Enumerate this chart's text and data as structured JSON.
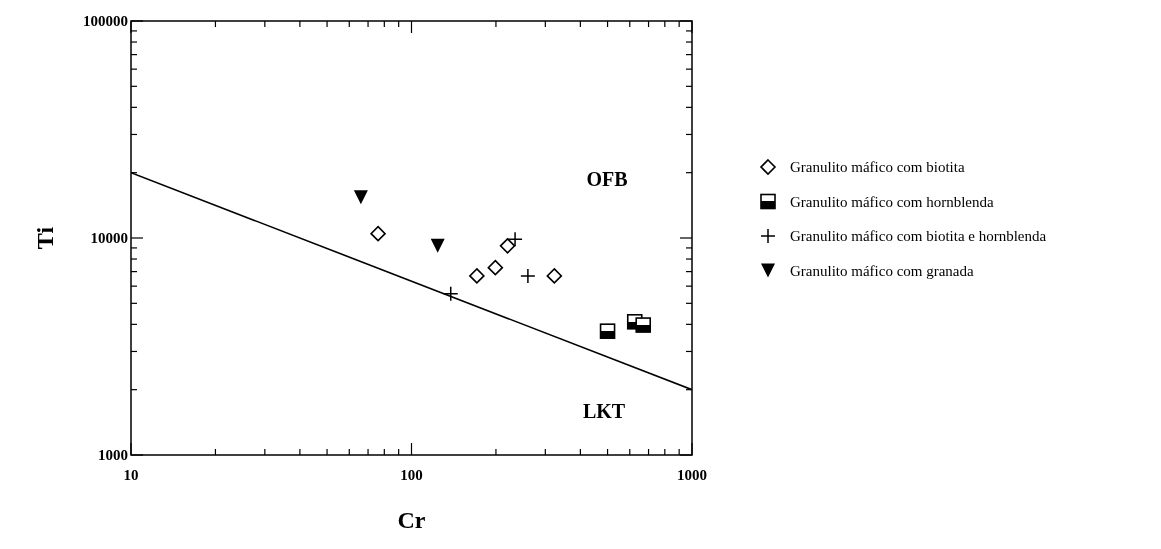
{
  "chart_data": {
    "type": "scatter",
    "xlabel": "Cr",
    "ylabel": "Ti",
    "log": "xy",
    "xlim": [
      10,
      1000
    ],
    "ylim": [
      1000,
      100000
    ],
    "xticks": [
      10,
      {
        "value": 20,
        "label": null
      },
      {
        "value": 30,
        "label": null
      },
      {
        "value": 40,
        "label": null
      },
      {
        "value": 50,
        "label": null
      },
      {
        "value": 60,
        "label": null
      },
      {
        "value": 70,
        "label": null
      },
      {
        "value": 80,
        "label": null
      },
      {
        "value": 90,
        "label": null
      },
      100,
      {
        "value": 200,
        "label": null
      },
      {
        "value": 300,
        "label": null
      },
      {
        "value": 400,
        "label": null
      },
      {
        "value": 500,
        "label": null
      },
      {
        "value": 600,
        "label": null
      },
      {
        "value": 700,
        "label": null
      },
      {
        "value": 800,
        "label": null
      },
      {
        "value": 900,
        "label": null
      },
      1000
    ],
    "yticks": [
      1000,
      {
        "value": 2000,
        "label": null
      },
      {
        "value": 3000,
        "label": null
      },
      {
        "value": 4000,
        "label": null
      },
      {
        "value": 5000,
        "label": null
      },
      {
        "value": 6000,
        "label": null
      },
      {
        "value": 7000,
        "label": null
      },
      {
        "value": 8000,
        "label": null
      },
      {
        "value": 9000,
        "label": null
      },
      10000,
      {
        "value": 20000,
        "label": null
      },
      {
        "value": 30000,
        "label": null
      },
      {
        "value": 40000,
        "label": null
      },
      {
        "value": 50000,
        "label": null
      },
      {
        "value": 60000,
        "label": null
      },
      {
        "value": 70000,
        "label": null
      },
      {
        "value": 80000,
        "label": null
      },
      {
        "value": 90000,
        "label": null
      },
      100000
    ],
    "grid": false,
    "legend": "right",
    "annotations": [
      "OFB",
      "LKT"
    ],
    "series": [
      {
        "name": "Granulito máfico com biotita",
        "color": "#000000",
        "marker": "diamond",
        "x": [
          76,
          171,
          199,
          220,
          323
        ],
        "values": [
          10470,
          6690,
          7300,
          9200,
          6690
        ]
      },
      {
        "name": "Granulito máfico com hornblenda",
        "color": "#000000",
        "marker": "square",
        "x": [
          500,
          625,
          670
        ],
        "values": [
          3720,
          4110,
          3970
        ]
      },
      {
        "name": "Granulito máfico com biotita e hornblenda",
        "color": "#000000",
        "marker": "cross",
        "x": [
          138,
          234,
          260
        ],
        "values": [
          5540,
          9880,
          6690
        ]
      },
      {
        "name": "Granulito máfico com granada",
        "color": "#000000",
        "marker": "triangle",
        "x": [
          66,
          124
        ],
        "values": [
          15400,
          9200
        ]
      },
      {
        "type": "line",
        "color": "#000000",
        "marker": "none",
        "line_style": "solid",
        "x": [
          10,
          1000
        ],
        "values": [
          20000,
          2000
        ]
      }
    ]
  }
}
